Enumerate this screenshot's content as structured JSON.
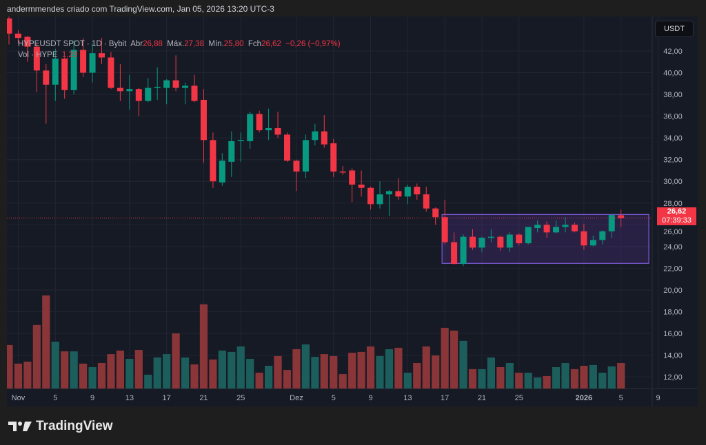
{
  "caption": "andermmendes criado com TradingView.com, Jan 05, 2026 13:20 UTC-3",
  "legend": {
    "symbol": "HYPEUSDT SPOT · 1D · Bybit",
    "open_label": "Abr",
    "open": "26,88",
    "high_label": "Máx.",
    "high": "27,38",
    "low_label": "Mín.",
    "low": "25,80",
    "close_label": "Fch",
    "close": "26,62",
    "change": "−0,26 (−0,97%)",
    "volume_label": "Vol · HYPE",
    "volume": "1,29 M"
  },
  "currency_button": "USDT",
  "last_price": {
    "value": "26,62",
    "countdown": "07:39:33"
  },
  "logo": "TradingView",
  "colors": {
    "up": "#089981",
    "down": "#f23645",
    "vol_up": "#1c5e5b",
    "vol_down": "#8a3538",
    "range_box": "#7b5bd6",
    "background": "#161a25"
  },
  "chart_data": {
    "type": "candlestick",
    "y_unit": "USDT",
    "ylim": [
      11,
      45
    ],
    "y_ticks": [
      "12,00",
      "14,00",
      "16,00",
      "18,00",
      "20,00",
      "22,00",
      "24,00",
      "26,00",
      "28,00",
      "30,00",
      "32,00",
      "34,00",
      "36,00",
      "38,00",
      "40,00",
      "42,00"
    ],
    "x_ticks": [
      {
        "label": "Nov",
        "date": "2025-11-01"
      },
      {
        "label": "5",
        "date": "2025-11-05"
      },
      {
        "label": "9",
        "date": "2025-11-09"
      },
      {
        "label": "13",
        "date": "2025-11-13"
      },
      {
        "label": "17",
        "date": "2025-11-17"
      },
      {
        "label": "21",
        "date": "2025-11-21"
      },
      {
        "label": "25",
        "date": "2025-11-25"
      },
      {
        "label": "Dez",
        "date": "2025-12-01"
      },
      {
        "label": "5",
        "date": "2025-12-05"
      },
      {
        "label": "9",
        "date": "2025-12-09"
      },
      {
        "label": "13",
        "date": "2025-12-13"
      },
      {
        "label": "17",
        "date": "2025-12-17"
      },
      {
        "label": "21",
        "date": "2025-12-21"
      },
      {
        "label": "25",
        "date": "2025-12-25"
      },
      {
        "label": "2026",
        "date": "2026-01-01"
      },
      {
        "label": "5",
        "date": "2026-01-05"
      },
      {
        "label": "9",
        "date": "2026-01-09"
      }
    ],
    "grid": true,
    "columns": [
      "date",
      "open",
      "high",
      "low",
      "close",
      "volume_M"
    ],
    "candles": [
      [
        "2025-10-31",
        45.0,
        45.3,
        42.6,
        43.6,
        2.2
      ],
      [
        "2025-11-01",
        43.6,
        43.9,
        42.7,
        43.2,
        1.26
      ],
      [
        "2025-11-02",
        43.3,
        43.4,
        41.0,
        42.4,
        1.36
      ],
      [
        "2025-11-03",
        42.4,
        42.7,
        38.2,
        40.2,
        3.21
      ],
      [
        "2025-11-04",
        40.2,
        40.8,
        35.3,
        38.9,
        4.71
      ],
      [
        "2025-11-05",
        38.9,
        42.2,
        37.4,
        41.3,
        2.37
      ],
      [
        "2025-11-06",
        41.3,
        41.4,
        37.6,
        38.4,
        1.88
      ],
      [
        "2025-11-07",
        38.4,
        43.0,
        38.0,
        42.1,
        1.88
      ],
      [
        "2025-11-08",
        42.1,
        43.2,
        39.6,
        40.0,
        1.26
      ],
      [
        "2025-11-09",
        40.0,
        42.7,
        39.1,
        41.8,
        1.08
      ],
      [
        "2025-11-10",
        41.8,
        43.2,
        40.8,
        41.4,
        1.29
      ],
      [
        "2025-11-11",
        41.4,
        41.9,
        38.5,
        38.6,
        1.74
      ],
      [
        "2025-11-12",
        38.6,
        40.8,
        37.4,
        38.3,
        1.92
      ],
      [
        "2025-11-13",
        38.3,
        39.8,
        36.6,
        38.5,
        1.5
      ],
      [
        "2025-11-14",
        38.5,
        38.6,
        36.0,
        37.4,
        1.95
      ],
      [
        "2025-11-15",
        37.4,
        39.5,
        37.3,
        38.6,
        0.7
      ],
      [
        "2025-11-16",
        38.6,
        40.5,
        37.5,
        38.7,
        1.57
      ],
      [
        "2025-11-17",
        38.6,
        39.4,
        37.1,
        39.3,
        1.74
      ],
      [
        "2025-11-18",
        39.3,
        41.6,
        38.3,
        38.6,
        2.79
      ],
      [
        "2025-11-19",
        38.6,
        39.1,
        37.1,
        38.8,
        1.57
      ],
      [
        "2025-11-20",
        38.8,
        39.8,
        37.3,
        37.4,
        1.22
      ],
      [
        "2025-11-21",
        37.5,
        38.5,
        31.7,
        33.8,
        4.26
      ],
      [
        "2025-11-22",
        33.8,
        34.5,
        29.4,
        30.0,
        1.47
      ],
      [
        "2025-11-23",
        29.9,
        32.6,
        29.6,
        31.9,
        1.92
      ],
      [
        "2025-11-24",
        31.8,
        34.6,
        30.4,
        33.7,
        1.85
      ],
      [
        "2025-11-25",
        33.7,
        34.5,
        31.8,
        33.8,
        2.13
      ],
      [
        "2025-11-26",
        33.7,
        36.4,
        33.0,
        36.2,
        1.5
      ],
      [
        "2025-11-27",
        36.2,
        36.5,
        34.5,
        34.7,
        0.8
      ],
      [
        "2025-11-28",
        34.7,
        36.7,
        33.8,
        34.9,
        1.15
      ],
      [
        "2025-11-29",
        34.9,
        36.4,
        34.0,
        34.3,
        1.64
      ],
      [
        "2025-11-30",
        34.3,
        34.5,
        31.8,
        31.9,
        0.94
      ],
      [
        "2025-12-01",
        31.9,
        32.0,
        29.1,
        30.9,
        1.99
      ],
      [
        "2025-12-02",
        30.9,
        34.3,
        30.3,
        33.8,
        2.23
      ],
      [
        "2025-12-03",
        33.8,
        35.3,
        33.3,
        34.6,
        1.6
      ],
      [
        "2025-12-04",
        34.6,
        36.1,
        33.1,
        33.4,
        1.74
      ],
      [
        "2025-12-05",
        33.5,
        33.9,
        30.4,
        30.9,
        1.64
      ],
      [
        "2025-12-06",
        30.9,
        31.4,
        30.6,
        30.85,
        0.73
      ],
      [
        "2025-12-07",
        31.0,
        31.2,
        28.1,
        29.7,
        1.81
      ],
      [
        "2025-12-08",
        29.7,
        31.0,
        28.6,
        29.4,
        1.85
      ],
      [
        "2025-12-09",
        29.4,
        29.5,
        27.4,
        27.9,
        2.13
      ],
      [
        "2025-12-10",
        27.9,
        30.0,
        27.5,
        28.8,
        1.64
      ],
      [
        "2025-12-11",
        28.8,
        29.2,
        26.8,
        29.1,
        1.99
      ],
      [
        "2025-12-12",
        29.1,
        30.3,
        28.3,
        28.6,
        2.06
      ],
      [
        "2025-12-13",
        28.6,
        29.7,
        27.9,
        29.5,
        0.8
      ],
      [
        "2025-12-14",
        29.5,
        29.8,
        28.3,
        28.8,
        1.29
      ],
      [
        "2025-12-15",
        28.8,
        29.5,
        27.2,
        27.5,
        2.13
      ],
      [
        "2025-12-16",
        27.5,
        27.6,
        26.0,
        26.7,
        1.67
      ],
      [
        "2025-12-17",
        26.7,
        28.3,
        24.2,
        24.4,
        3.07
      ],
      [
        "2025-12-18",
        24.4,
        25.3,
        22.35,
        22.4,
        2.93
      ],
      [
        "2025-12-19",
        22.4,
        25.1,
        22.2,
        24.9,
        2.41
      ],
      [
        "2025-12-20",
        24.9,
        25.6,
        23.7,
        23.9,
        0.98
      ],
      [
        "2025-12-21",
        23.9,
        24.9,
        23.5,
        24.8,
        0.98
      ],
      [
        "2025-12-22",
        24.8,
        25.6,
        24.4,
        24.9,
        1.57
      ],
      [
        "2025-12-23",
        24.9,
        25.0,
        23.6,
        23.9,
        1.08
      ],
      [
        "2025-12-24",
        23.9,
        25.3,
        23.5,
        25.1,
        1.29
      ],
      [
        "2025-12-25",
        25.1,
        25.2,
        24.1,
        24.3,
        0.8
      ],
      [
        "2025-12-26",
        24.3,
        25.8,
        24.2,
        25.8,
        0.8
      ],
      [
        "2025-12-27",
        25.7,
        26.4,
        25.3,
        26.0,
        0.56
      ],
      [
        "2025-12-28",
        26.0,
        26.3,
        24.8,
        25.3,
        0.63
      ],
      [
        "2025-12-29",
        25.3,
        26.4,
        25.2,
        25.8,
        1.08
      ],
      [
        "2025-12-30",
        25.8,
        26.7,
        25.3,
        26.0,
        1.29
      ],
      [
        "2025-12-31",
        26.0,
        26.2,
        25.3,
        25.4,
        0.98
      ],
      [
        "2026-01-01",
        25.4,
        26.1,
        23.7,
        24.1,
        1.15
      ],
      [
        "2026-01-02",
        24.1,
        25.0,
        24.0,
        24.6,
        1.19
      ],
      [
        "2026-01-03",
        24.6,
        25.5,
        24.2,
        25.4,
        0.8
      ],
      [
        "2026-01-04",
        25.4,
        26.9,
        24.8,
        26.9,
        1.12
      ],
      [
        "2026-01-05",
        26.88,
        27.38,
        25.8,
        26.62,
        1.29
      ]
    ],
    "annotations": [
      {
        "type": "rectangle",
        "from": "2025-12-17",
        "to": "2026-01-08",
        "price_low": 22.45,
        "price_high": 26.95
      },
      {
        "type": "price_line",
        "price": 26.62,
        "style": "dotted"
      }
    ]
  }
}
